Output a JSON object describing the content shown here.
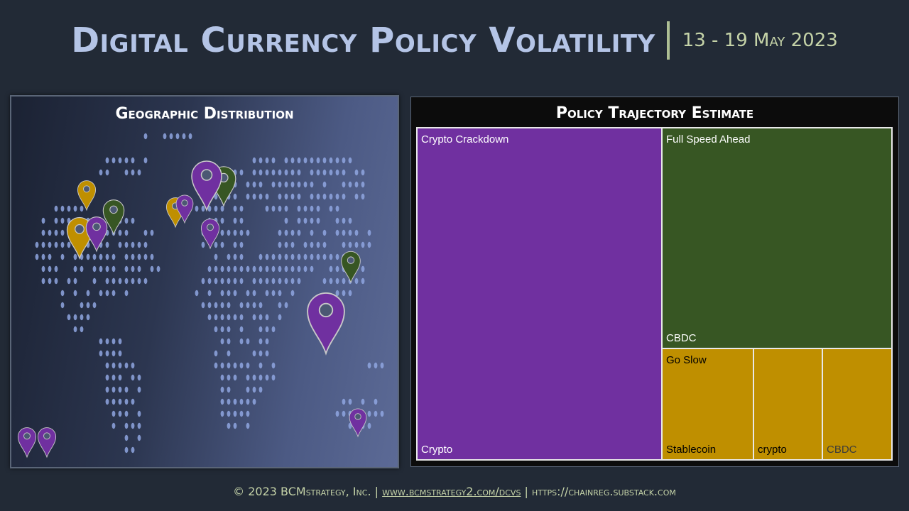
{
  "header": {
    "title": "Digital Currency Policy Volatility",
    "date_range": "13 - 19 May  2023"
  },
  "geo": {
    "title": "Geographic Distribution",
    "colors": {
      "purple": "#7030a0",
      "green": "#375623",
      "gold": "#bf8f00"
    }
  },
  "treemap": {
    "title": "Policy Trajectory Estimate",
    "cells": [
      {
        "group": "Crypto Crackdown",
        "label": "Crypto",
        "color": "#7030a0",
        "text_color": "#ffffff"
      },
      {
        "group": "Full Speed Ahead",
        "label": "CBDC",
        "color": "#375623",
        "text_color": "#ffffff"
      },
      {
        "group": "Go Slow",
        "label": "Stablecoin",
        "color": "#bf8f00",
        "text_color": "#000000"
      },
      {
        "label": "crypto",
        "color": "#bf8f00",
        "text_color": "#000000"
      },
      {
        "label": "CBDC",
        "color": "#bf8f00",
        "text_color": "#3b3b3b"
      }
    ]
  },
  "footer": {
    "copyright": "© 2023 BCMstrategy, Inc.",
    "sep1": "|",
    "link1": "www.bcmstrategy2.com/dcvs",
    "sep2": "|",
    "link2": "https://chainreg.substack.com"
  }
}
